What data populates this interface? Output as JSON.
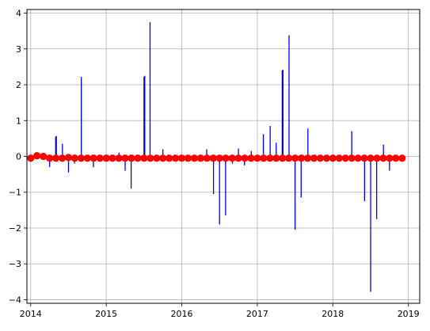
{
  "chart_data": {
    "type": "line",
    "title": "",
    "xlabel": "",
    "ylabel": "",
    "xlim": [
      2013.95,
      2019.15
    ],
    "ylim": [
      -4.1,
      4.1
    ],
    "grid": true,
    "x_ticks": [
      {
        "value": 2014,
        "label": "2014"
      },
      {
        "value": 2015,
        "label": "2015"
      },
      {
        "value": 2016,
        "label": "2016"
      },
      {
        "value": 2017,
        "label": "2017"
      },
      {
        "value": 2018,
        "label": "2018"
      },
      {
        "value": 2019,
        "label": "2019"
      }
    ],
    "y_ticks": [
      {
        "value": 4,
        "label": "4"
      },
      {
        "value": 3,
        "label": "3"
      },
      {
        "value": 2,
        "label": "2"
      },
      {
        "value": 1,
        "label": "1"
      },
      {
        "value": 0,
        "label": "0"
      },
      {
        "value": -1,
        "label": "−1"
      },
      {
        "value": -2,
        "label": "−2"
      },
      {
        "value": -3,
        "label": "−3"
      },
      {
        "value": -4,
        "label": "−4"
      }
    ],
    "colors": {
      "spikes": "#0000ff",
      "markers": "#ff0000",
      "grid": "#b0b0b0",
      "axes": "#000000"
    },
    "series": [
      {
        "style": "vertical-lines",
        "color": "#0000ff",
        "x": [
          2014.25,
          2014.33,
          2014.34,
          2014.42,
          2014.5,
          2014.58,
          2014.67,
          2014.75,
          2014.83,
          2015.17,
          2015.25,
          2015.33,
          2015.5,
          2015.51,
          2015.58,
          2015.75,
          2015.83,
          2016.33,
          2016.42,
          2016.5,
          2016.58,
          2016.67,
          2016.75,
          2016.83,
          2016.92,
          2017.08,
          2017.17,
          2017.25,
          2017.33,
          2017.34,
          2017.42,
          2017.5,
          2017.58,
          2017.67,
          2017.75,
          2018.25,
          2018.42,
          2018.5,
          2018.58,
          2018.67,
          2018.75
        ],
        "y": [
          -0.3,
          0.55,
          0.57,
          0.35,
          -0.45,
          -0.2,
          2.22,
          -0.15,
          -0.3,
          0.1,
          -0.4,
          -0.9,
          2.22,
          2.25,
          3.75,
          0.2,
          -0.15,
          0.2,
          -1.05,
          -1.9,
          -1.65,
          -0.2,
          0.22,
          -0.25,
          0.15,
          0.62,
          0.85,
          0.38,
          2.4,
          2.42,
          3.38,
          -2.05,
          -1.15,
          0.78,
          -0.15,
          0.7,
          -1.25,
          -3.78,
          -1.75,
          0.33,
          -0.4
        ]
      },
      {
        "style": "markers",
        "color": "#ff0000",
        "x": [
          2014.0,
          2014.083,
          2014.167,
          2014.25,
          2014.333,
          2014.417,
          2014.5,
          2014.583,
          2014.667,
          2014.75,
          2014.833,
          2014.917,
          2015.0,
          2015.083,
          2015.167,
          2015.25,
          2015.333,
          2015.417,
          2015.5,
          2015.583,
          2015.667,
          2015.75,
          2015.833,
          2015.917,
          2016.0,
          2016.083,
          2016.167,
          2016.25,
          2016.333,
          2016.417,
          2016.5,
          2016.583,
          2016.667,
          2016.75,
          2016.833,
          2016.917,
          2017.0,
          2017.083,
          2017.167,
          2017.25,
          2017.333,
          2017.417,
          2017.5,
          2017.583,
          2017.667,
          2017.75,
          2017.833,
          2017.917,
          2018.0,
          2018.083,
          2018.167,
          2018.25,
          2018.333,
          2018.417,
          2018.5,
          2018.583,
          2018.667,
          2018.75,
          2018.833,
          2018.917
        ],
        "y": [
          -0.05,
          0.02,
          0.0,
          -0.05,
          -0.05,
          -0.05,
          -0.03,
          -0.05,
          -0.05,
          -0.05,
          -0.05,
          -0.05,
          -0.05,
          -0.05,
          -0.05,
          -0.05,
          -0.05,
          -0.05,
          -0.05,
          -0.05,
          -0.05,
          -0.05,
          -0.05,
          -0.05,
          -0.05,
          -0.05,
          -0.05,
          -0.05,
          -0.05,
          -0.05,
          -0.05,
          -0.05,
          -0.05,
          -0.05,
          -0.05,
          -0.05,
          -0.05,
          -0.05,
          -0.05,
          -0.05,
          -0.05,
          -0.05,
          -0.05,
          -0.05,
          -0.05,
          -0.05,
          -0.05,
          -0.05,
          -0.05,
          -0.05,
          -0.05,
          -0.05,
          -0.05,
          -0.05,
          -0.05,
          -0.05,
          -0.05,
          -0.05,
          -0.05,
          -0.05
        ]
      }
    ]
  }
}
